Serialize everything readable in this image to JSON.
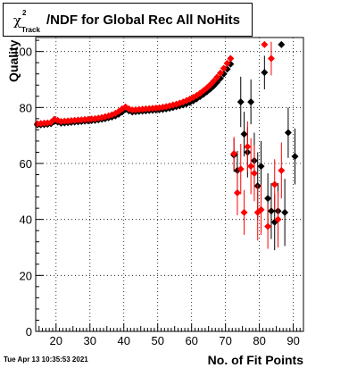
{
  "title": {
    "chi_symbol": "χ",
    "chi_sup": "2",
    "chi_sub": "Track",
    "text": "/NDF for Global Rec All NoHits"
  },
  "timestamp": "Tue Apr 13 10:35:53 2021",
  "chart_data": {
    "type": "scatter",
    "xlabel": "No. of Fit Points",
    "ylabel": "Quality",
    "xlim": [
      14,
      93
    ],
    "ylim": [
      0,
      105
    ],
    "xticks": [
      20,
      30,
      40,
      50,
      60,
      70,
      80,
      90
    ],
    "yticks": [
      0,
      20,
      40,
      60,
      80,
      100
    ],
    "grid": true,
    "series": [
      {
        "color": "#000000",
        "points": [
          [
            14.5,
            73.8
          ],
          [
            15.5,
            73.8
          ],
          [
            16.5,
            73.9
          ],
          [
            17.5,
            74.0
          ],
          [
            18.5,
            74.2
          ],
          [
            19.5,
            75.0
          ],
          [
            20.5,
            74.8
          ],
          [
            21.5,
            74.4
          ],
          [
            22.5,
            74.5
          ],
          [
            23.5,
            74.6
          ],
          [
            24.5,
            74.7
          ],
          [
            25.5,
            74.8
          ],
          [
            26.5,
            74.9
          ],
          [
            27.5,
            75.0
          ],
          [
            28.5,
            75.1
          ],
          [
            29.5,
            75.2
          ],
          [
            30.5,
            75.3
          ],
          [
            31.5,
            75.4
          ],
          [
            32.5,
            75.6
          ],
          [
            33.5,
            75.8
          ],
          [
            34.5,
            76.0
          ],
          [
            35.5,
            76.3
          ],
          [
            36.5,
            76.6
          ],
          [
            37.5,
            77.0
          ],
          [
            38.5,
            77.6
          ],
          [
            39.5,
            78.4
          ],
          [
            40.5,
            79.3
          ],
          [
            41.5,
            78.8
          ],
          [
            42.5,
            78.4
          ],
          [
            43.5,
            78.5
          ],
          [
            44.5,
            78.6
          ],
          [
            45.5,
            78.7
          ],
          [
            46.5,
            78.8
          ],
          [
            47.5,
            78.9
          ],
          [
            48.5,
            79.0
          ],
          [
            49.5,
            79.1
          ],
          [
            50.5,
            79.2
          ],
          [
            51.5,
            79.3
          ],
          [
            52.5,
            79.5
          ],
          [
            53.5,
            79.7
          ],
          [
            54.5,
            80.0
          ],
          [
            55.5,
            80.3
          ],
          [
            56.5,
            80.6
          ],
          [
            57.5,
            80.9
          ],
          [
            58.5,
            81.3
          ],
          [
            59.5,
            81.8
          ],
          [
            60.5,
            82.4
          ],
          [
            61.5,
            83.1
          ],
          [
            62.5,
            83.9
          ],
          [
            63.5,
            84.7
          ],
          [
            64.5,
            85.6
          ],
          [
            65.5,
            86.6
          ],
          [
            66.5,
            87.7
          ],
          [
            67.5,
            89.0
          ],
          [
            68.5,
            90.4
          ],
          [
            69.5,
            92.0
          ],
          [
            70.5,
            93.7
          ],
          [
            71.5,
            95.5
          ],
          [
            72.5,
            63.0
          ],
          [
            73.5,
            57.5
          ],
          [
            74.5,
            82.0
          ],
          [
            75.5,
            70.5
          ],
          [
            76.5,
            64.0
          ],
          [
            77.5,
            82.0
          ],
          [
            78.5,
            61.0
          ],
          [
            79.5,
            52.0
          ],
          [
            80.5,
            59.0
          ],
          [
            81.5,
            92.5
          ],
          [
            82.5,
            47.5
          ],
          [
            83.5,
            43.0
          ],
          [
            84.5,
            39.0
          ],
          [
            85.5,
            43.0
          ],
          [
            86.5,
            102.5
          ],
          [
            87.5,
            42.5
          ],
          [
            88.5,
            71.0
          ],
          [
            90.5,
            62.5
          ]
        ],
        "errors": [
          [
            72.5,
            6
          ],
          [
            73.5,
            7
          ],
          [
            74.5,
            9
          ],
          [
            75.5,
            8
          ],
          [
            76.5,
            9
          ],
          [
            77.5,
            8
          ],
          [
            78.5,
            10
          ],
          [
            79.5,
            12
          ],
          [
            80.5,
            9
          ],
          [
            81.5,
            6
          ],
          [
            82.5,
            9
          ],
          [
            83.5,
            10
          ],
          [
            84.5,
            10
          ],
          [
            85.5,
            10
          ],
          [
            87.5,
            12
          ],
          [
            88.5,
            9
          ],
          [
            90.5,
            10
          ]
        ]
      },
      {
        "color": "#ff0000",
        "points": [
          [
            14.5,
            74.2
          ],
          [
            15.5,
            74.3
          ],
          [
            16.5,
            74.4
          ],
          [
            17.5,
            74.5
          ],
          [
            18.5,
            74.7
          ],
          [
            19.5,
            75.8
          ],
          [
            20.5,
            75.4
          ],
          [
            21.5,
            75.0
          ],
          [
            22.5,
            75.1
          ],
          [
            23.5,
            75.2
          ],
          [
            24.5,
            75.3
          ],
          [
            25.5,
            75.4
          ],
          [
            26.5,
            75.5
          ],
          [
            27.5,
            75.6
          ],
          [
            28.5,
            75.7
          ],
          [
            29.5,
            75.8
          ],
          [
            30.5,
            75.9
          ],
          [
            31.5,
            76.0
          ],
          [
            32.5,
            76.2
          ],
          [
            33.5,
            76.4
          ],
          [
            34.5,
            76.7
          ],
          [
            35.5,
            77.0
          ],
          [
            36.5,
            77.4
          ],
          [
            37.5,
            77.9
          ],
          [
            38.5,
            78.6
          ],
          [
            39.5,
            79.5
          ],
          [
            40.5,
            80.2
          ],
          [
            41.5,
            79.5
          ],
          [
            42.5,
            79.1
          ],
          [
            43.5,
            79.2
          ],
          [
            44.5,
            79.3
          ],
          [
            45.5,
            79.4
          ],
          [
            46.5,
            79.5
          ],
          [
            47.5,
            79.6
          ],
          [
            48.5,
            79.7
          ],
          [
            49.5,
            79.8
          ],
          [
            50.5,
            79.9
          ],
          [
            51.5,
            80.1
          ],
          [
            52.5,
            80.3
          ],
          [
            53.5,
            80.6
          ],
          [
            54.5,
            80.9
          ],
          [
            55.5,
            81.2
          ],
          [
            56.5,
            81.6
          ],
          [
            57.5,
            82.0
          ],
          [
            58.5,
            82.5
          ],
          [
            59.5,
            83.0
          ],
          [
            60.5,
            83.6
          ],
          [
            61.5,
            84.3
          ],
          [
            62.5,
            85.1
          ],
          [
            63.5,
            86.0
          ],
          [
            64.5,
            87.0
          ],
          [
            65.5,
            88.1
          ],
          [
            66.5,
            89.4
          ],
          [
            67.5,
            90.8
          ],
          [
            68.5,
            92.3
          ],
          [
            69.5,
            94.0
          ],
          [
            70.5,
            95.8
          ],
          [
            71.5,
            97.5
          ],
          [
            72.5,
            63.5
          ],
          [
            73.5,
            49.5
          ],
          [
            74.5,
            58.0
          ],
          [
            75.5,
            42.5
          ],
          [
            76.5,
            66.0
          ],
          [
            77.5,
            59.0
          ],
          [
            78.5,
            56.5
          ],
          [
            79.5,
            42.5
          ],
          [
            80.5,
            43.5
          ],
          [
            81.5,
            102.5
          ],
          [
            82.5,
            37.5
          ],
          [
            83.5,
            97.5
          ],
          [
            84.5,
            52.5
          ],
          [
            85.5,
            40.0
          ],
          [
            86.5,
            57.5
          ]
        ],
        "errors": [
          [
            72.5,
            6
          ],
          [
            73.5,
            8
          ],
          [
            74.5,
            9
          ],
          [
            75.5,
            8
          ],
          [
            76.5,
            9
          ],
          [
            77.5,
            10
          ],
          [
            78.5,
            10
          ],
          [
            79.5,
            10
          ],
          [
            80.5,
            9
          ],
          [
            82.5,
            8
          ],
          [
            83.5,
            6
          ],
          [
            84.5,
            9
          ],
          [
            85.5,
            10
          ],
          [
            86.5,
            10
          ]
        ]
      }
    ]
  }
}
